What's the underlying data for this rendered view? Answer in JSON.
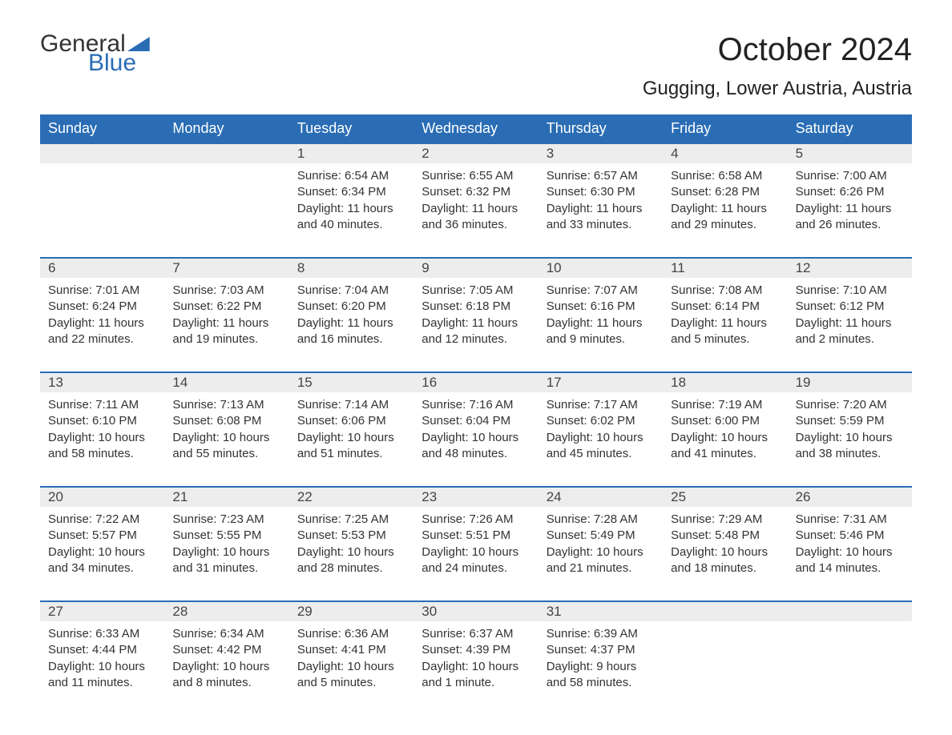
{
  "brand": {
    "word1": "General",
    "word2": "Blue"
  },
  "title": "October 2024",
  "location": "Gugging, Lower Austria, Austria",
  "colors": {
    "header_bg": "#2a6db5",
    "header_text": "#ffffff",
    "daynum_bg": "#ededed",
    "text": "#333333",
    "week_border": "#2a6db5",
    "logo_blue": "#2a6db5"
  },
  "layout": {
    "columns": 7,
    "weeks": 5,
    "font_family": "Arial",
    "title_fontsize": 40,
    "location_fontsize": 24,
    "header_fontsize": 18,
    "cell_fontsize": 15
  },
  "day_names": [
    "Sunday",
    "Monday",
    "Tuesday",
    "Wednesday",
    "Thursday",
    "Friday",
    "Saturday"
  ],
  "weeks": [
    {
      "nums": [
        "",
        "",
        "1",
        "2",
        "3",
        "4",
        "5"
      ],
      "cells": [
        null,
        null,
        {
          "sunrise": "Sunrise: 6:54 AM",
          "sunset": "Sunset: 6:34 PM",
          "day1": "Daylight: 11 hours",
          "day2": "and 40 minutes."
        },
        {
          "sunrise": "Sunrise: 6:55 AM",
          "sunset": "Sunset: 6:32 PM",
          "day1": "Daylight: 11 hours",
          "day2": "and 36 minutes."
        },
        {
          "sunrise": "Sunrise: 6:57 AM",
          "sunset": "Sunset: 6:30 PM",
          "day1": "Daylight: 11 hours",
          "day2": "and 33 minutes."
        },
        {
          "sunrise": "Sunrise: 6:58 AM",
          "sunset": "Sunset: 6:28 PM",
          "day1": "Daylight: 11 hours",
          "day2": "and 29 minutes."
        },
        {
          "sunrise": "Sunrise: 7:00 AM",
          "sunset": "Sunset: 6:26 PM",
          "day1": "Daylight: 11 hours",
          "day2": "and 26 minutes."
        }
      ]
    },
    {
      "nums": [
        "6",
        "7",
        "8",
        "9",
        "10",
        "11",
        "12"
      ],
      "cells": [
        {
          "sunrise": "Sunrise: 7:01 AM",
          "sunset": "Sunset: 6:24 PM",
          "day1": "Daylight: 11 hours",
          "day2": "and 22 minutes."
        },
        {
          "sunrise": "Sunrise: 7:03 AM",
          "sunset": "Sunset: 6:22 PM",
          "day1": "Daylight: 11 hours",
          "day2": "and 19 minutes."
        },
        {
          "sunrise": "Sunrise: 7:04 AM",
          "sunset": "Sunset: 6:20 PM",
          "day1": "Daylight: 11 hours",
          "day2": "and 16 minutes."
        },
        {
          "sunrise": "Sunrise: 7:05 AM",
          "sunset": "Sunset: 6:18 PM",
          "day1": "Daylight: 11 hours",
          "day2": "and 12 minutes."
        },
        {
          "sunrise": "Sunrise: 7:07 AM",
          "sunset": "Sunset: 6:16 PM",
          "day1": "Daylight: 11 hours",
          "day2": "and 9 minutes."
        },
        {
          "sunrise": "Sunrise: 7:08 AM",
          "sunset": "Sunset: 6:14 PM",
          "day1": "Daylight: 11 hours",
          "day2": "and 5 minutes."
        },
        {
          "sunrise": "Sunrise: 7:10 AM",
          "sunset": "Sunset: 6:12 PM",
          "day1": "Daylight: 11 hours",
          "day2": "and 2 minutes."
        }
      ]
    },
    {
      "nums": [
        "13",
        "14",
        "15",
        "16",
        "17",
        "18",
        "19"
      ],
      "cells": [
        {
          "sunrise": "Sunrise: 7:11 AM",
          "sunset": "Sunset: 6:10 PM",
          "day1": "Daylight: 10 hours",
          "day2": "and 58 minutes."
        },
        {
          "sunrise": "Sunrise: 7:13 AM",
          "sunset": "Sunset: 6:08 PM",
          "day1": "Daylight: 10 hours",
          "day2": "and 55 minutes."
        },
        {
          "sunrise": "Sunrise: 7:14 AM",
          "sunset": "Sunset: 6:06 PM",
          "day1": "Daylight: 10 hours",
          "day2": "and 51 minutes."
        },
        {
          "sunrise": "Sunrise: 7:16 AM",
          "sunset": "Sunset: 6:04 PM",
          "day1": "Daylight: 10 hours",
          "day2": "and 48 minutes."
        },
        {
          "sunrise": "Sunrise: 7:17 AM",
          "sunset": "Sunset: 6:02 PM",
          "day1": "Daylight: 10 hours",
          "day2": "and 45 minutes."
        },
        {
          "sunrise": "Sunrise: 7:19 AM",
          "sunset": "Sunset: 6:00 PM",
          "day1": "Daylight: 10 hours",
          "day2": "and 41 minutes."
        },
        {
          "sunrise": "Sunrise: 7:20 AM",
          "sunset": "Sunset: 5:59 PM",
          "day1": "Daylight: 10 hours",
          "day2": "and 38 minutes."
        }
      ]
    },
    {
      "nums": [
        "20",
        "21",
        "22",
        "23",
        "24",
        "25",
        "26"
      ],
      "cells": [
        {
          "sunrise": "Sunrise: 7:22 AM",
          "sunset": "Sunset: 5:57 PM",
          "day1": "Daylight: 10 hours",
          "day2": "and 34 minutes."
        },
        {
          "sunrise": "Sunrise: 7:23 AM",
          "sunset": "Sunset: 5:55 PM",
          "day1": "Daylight: 10 hours",
          "day2": "and 31 minutes."
        },
        {
          "sunrise": "Sunrise: 7:25 AM",
          "sunset": "Sunset: 5:53 PM",
          "day1": "Daylight: 10 hours",
          "day2": "and 28 minutes."
        },
        {
          "sunrise": "Sunrise: 7:26 AM",
          "sunset": "Sunset: 5:51 PM",
          "day1": "Daylight: 10 hours",
          "day2": "and 24 minutes."
        },
        {
          "sunrise": "Sunrise: 7:28 AM",
          "sunset": "Sunset: 5:49 PM",
          "day1": "Daylight: 10 hours",
          "day2": "and 21 minutes."
        },
        {
          "sunrise": "Sunrise: 7:29 AM",
          "sunset": "Sunset: 5:48 PM",
          "day1": "Daylight: 10 hours",
          "day2": "and 18 minutes."
        },
        {
          "sunrise": "Sunrise: 7:31 AM",
          "sunset": "Sunset: 5:46 PM",
          "day1": "Daylight: 10 hours",
          "day2": "and 14 minutes."
        }
      ]
    },
    {
      "nums": [
        "27",
        "28",
        "29",
        "30",
        "31",
        "",
        ""
      ],
      "cells": [
        {
          "sunrise": "Sunrise: 6:33 AM",
          "sunset": "Sunset: 4:44 PM",
          "day1": "Daylight: 10 hours",
          "day2": "and 11 minutes."
        },
        {
          "sunrise": "Sunrise: 6:34 AM",
          "sunset": "Sunset: 4:42 PM",
          "day1": "Daylight: 10 hours",
          "day2": "and 8 minutes."
        },
        {
          "sunrise": "Sunrise: 6:36 AM",
          "sunset": "Sunset: 4:41 PM",
          "day1": "Daylight: 10 hours",
          "day2": "and 5 minutes."
        },
        {
          "sunrise": "Sunrise: 6:37 AM",
          "sunset": "Sunset: 4:39 PM",
          "day1": "Daylight: 10 hours",
          "day2": "and 1 minute."
        },
        {
          "sunrise": "Sunrise: 6:39 AM",
          "sunset": "Sunset: 4:37 PM",
          "day1": "Daylight: 9 hours",
          "day2": "and 58 minutes."
        },
        null,
        null
      ]
    }
  ]
}
